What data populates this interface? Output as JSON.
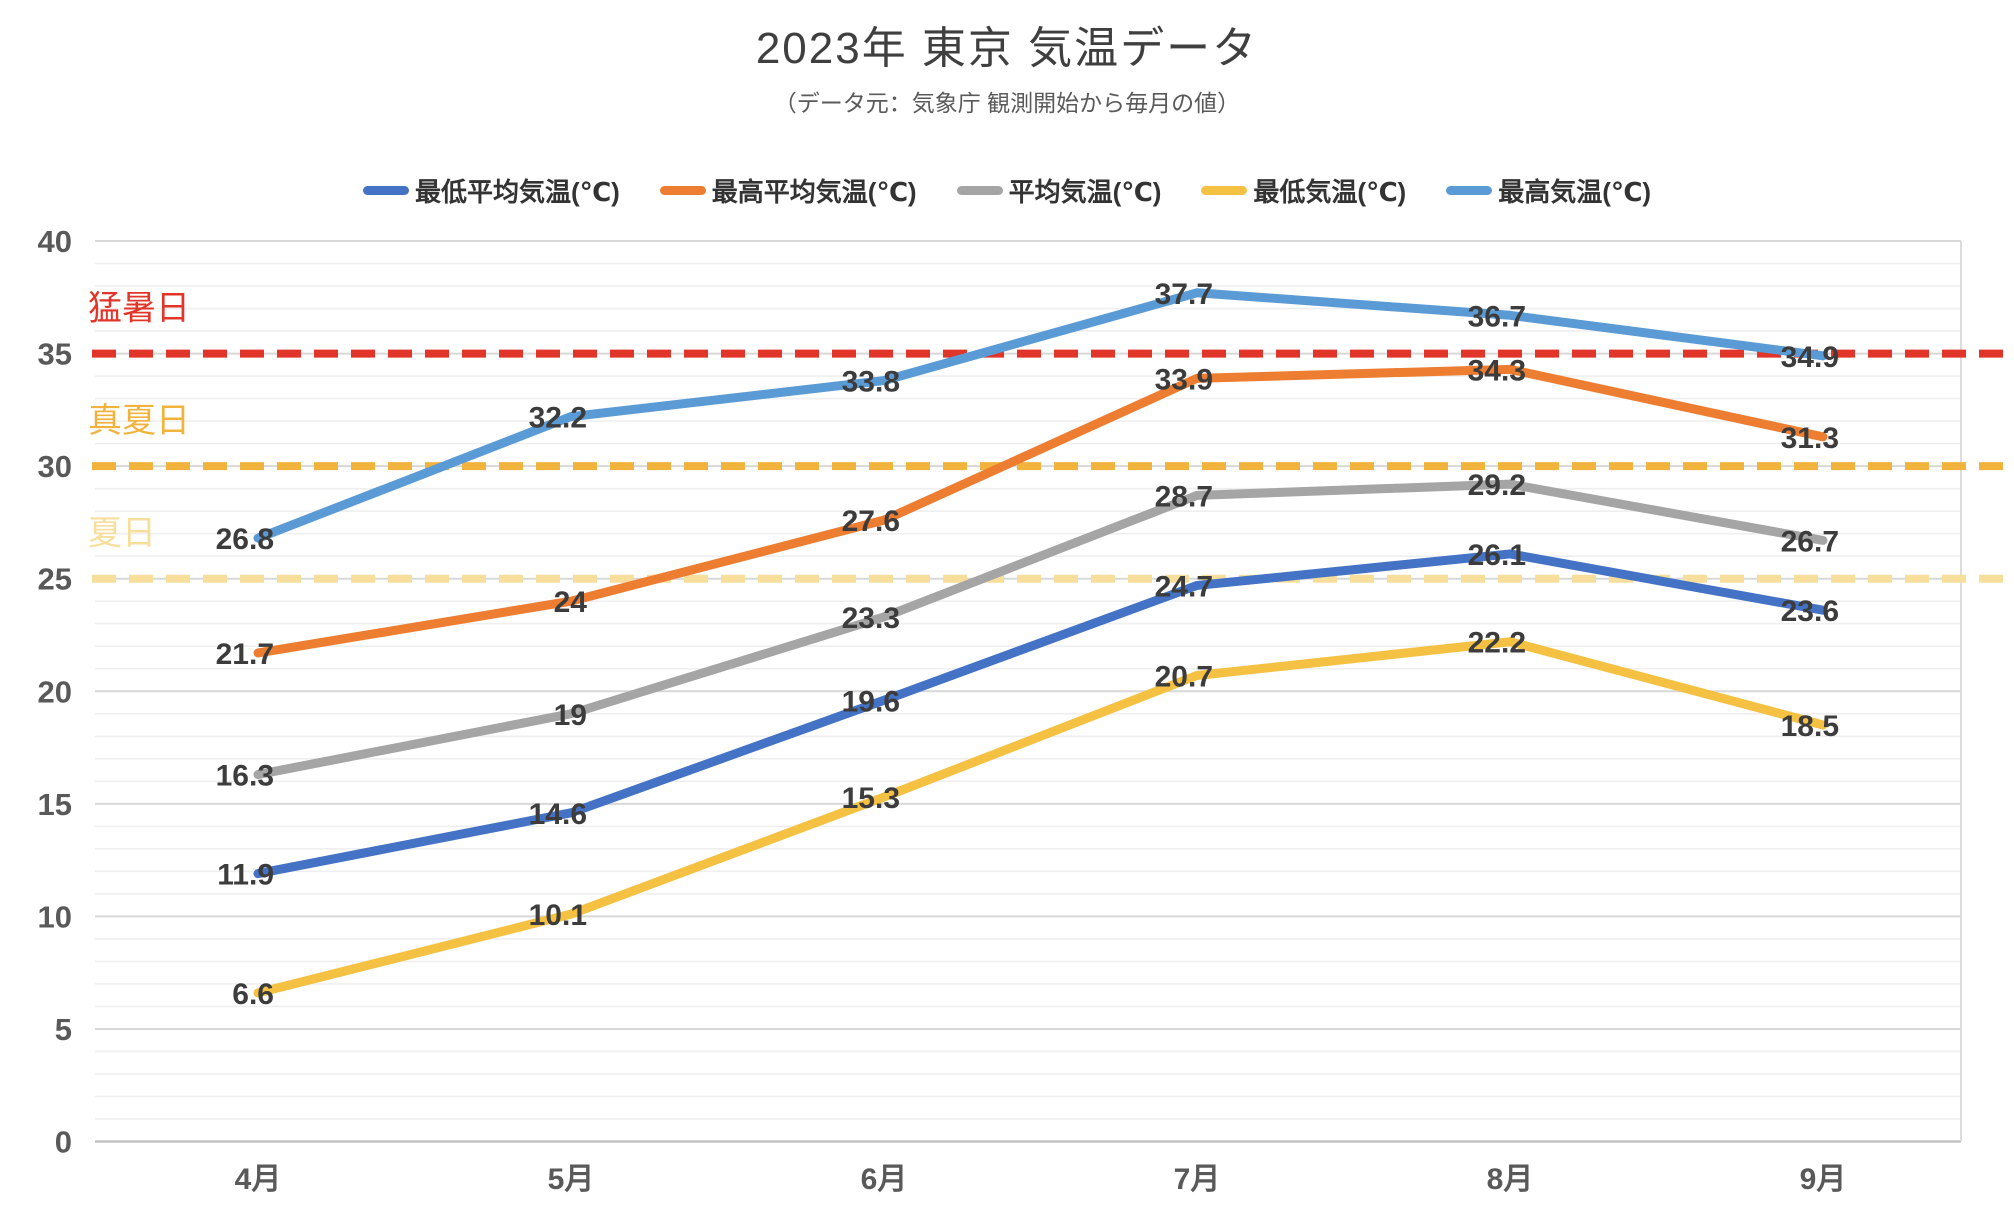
{
  "page": {
    "title": "2023年 東京 気温データ",
    "subtitle": "（データ元：気象庁 観測開始から毎月の値）"
  },
  "chart_data": {
    "type": "line",
    "title": "2023年 東京 気温データ",
    "subtitle": "（データ元：気象庁 観測開始から毎月の値）",
    "categories": [
      "4月",
      "5月",
      "6月",
      "7月",
      "8月",
      "9月"
    ],
    "xlabel": "",
    "ylabel": "",
    "ylim": [
      0,
      40
    ],
    "y_ticks": [
      0,
      5,
      10,
      15,
      20,
      25,
      30,
      35,
      40
    ],
    "y_minor_step": 1,
    "grid": true,
    "legend_position": "top",
    "series": [
      {
        "name": "最低平均気温(℃)",
        "color": "#4472C4",
        "values": [
          11.9,
          14.6,
          19.6,
          24.7,
          26.1,
          23.6
        ]
      },
      {
        "name": "最高平均気温(℃)",
        "color": "#ED7D31",
        "values": [
          21.7,
          24,
          27.6,
          33.9,
          34.3,
          31.3
        ]
      },
      {
        "name": "平均気温(℃)",
        "color": "#A5A5A5",
        "values": [
          16.3,
          19,
          23.3,
          28.7,
          29.2,
          26.7
        ]
      },
      {
        "name": "最低気温(℃)",
        "color": "#F5C142",
        "values": [
          6.6,
          10.1,
          15.3,
          20.7,
          22.2,
          18.5
        ]
      },
      {
        "name": "最高気温(℃)",
        "color": "#5B9BD5",
        "values": [
          26.8,
          32.2,
          33.8,
          37.7,
          36.7,
          34.9
        ]
      }
    ],
    "thresholds": [
      {
        "label": "猛暑日",
        "value": 35,
        "color": "#E2352A"
      },
      {
        "label": "真夏日",
        "value": 30,
        "color": "#F2B33C"
      },
      {
        "label": "夏日",
        "value": 25,
        "color": "#F8DE9B"
      }
    ],
    "colors": {
      "title_text": "#3f3f3f",
      "axis_text": "#595959",
      "data_label_text": "#3c3c3c",
      "grid_major": "#d8d8d8",
      "grid_minor": "#efefef",
      "grid_zero": "#c2c2c2"
    }
  }
}
